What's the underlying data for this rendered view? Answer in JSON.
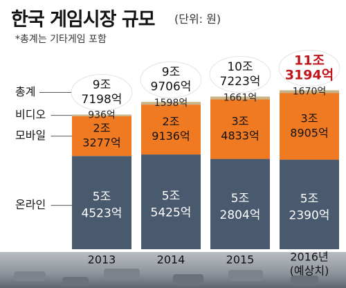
{
  "header": {
    "title": "한국 게임시장 규모",
    "unit": "(단위: 원)",
    "note": "*총계는 기타게임 포함"
  },
  "chart_data": {
    "type": "bar",
    "stacked": true,
    "categories": [
      "2013",
      "2014",
      "2015",
      "2016년\n(예상치)"
    ],
    "value_unit": "억 원",
    "series": [
      {
        "name": "온라인",
        "values": [
          54523,
          55425,
          52804,
          52390
        ],
        "labels": [
          "5조\n4523억",
          "5조\n5425억",
          "5조\n2804억",
          "5조\n2390억"
        ],
        "color": "#4a5a6e"
      },
      {
        "name": "모바일",
        "values": [
          23277,
          29136,
          34833,
          38905
        ],
        "labels": [
          "2조\n3277억",
          "2조\n9136억",
          "3조\n4833억",
          "3조\n8905억"
        ],
        "color": "#f07a22"
      },
      {
        "name": "비디오",
        "values": [
          936,
          1598,
          1661,
          1670
        ],
        "labels": [
          "936억",
          "1598억",
          "1661억",
          "1670억"
        ],
        "color": "#c9b489"
      }
    ],
    "totals": {
      "name": "총계",
      "values": [
        97198,
        99706,
        107223,
        113194
      ],
      "labels": [
        "9조\n7198억",
        "9조\n9706억",
        "10조\n7223억",
        "11조\n3194억"
      ],
      "highlight_color": "#c0141b"
    },
    "legend_position": "left",
    "grid": false
  }
}
